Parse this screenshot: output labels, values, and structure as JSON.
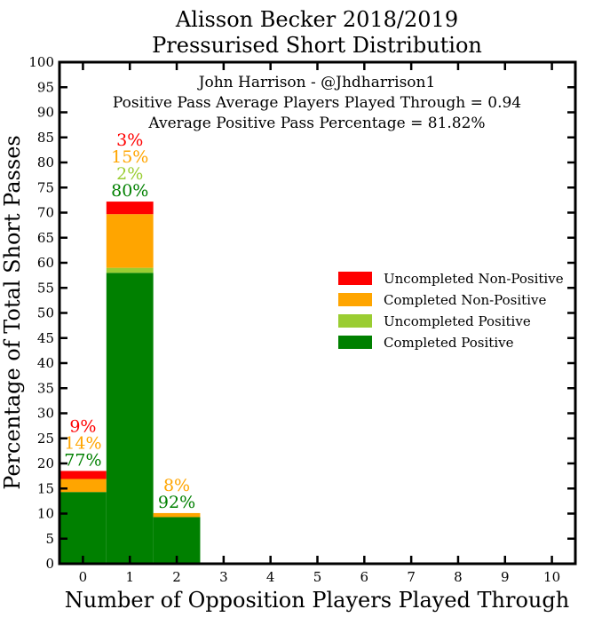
{
  "chart_data": {
    "type": "bar",
    "stacked": true,
    "title": "Alisson Becker 2018/2019",
    "subtitle": "Pressurised Short Distribution",
    "xlabel": "Number of Opposition Players Played Through",
    "ylabel": "Percentage of Total Short Passes",
    "annotations": [
      "John Harrison - @Jhdharrison1",
      "Positive Pass Average Players Played Through = 0.94",
      "Average Positive Pass Percentage = 81.82%"
    ],
    "categories": [
      0,
      1,
      2,
      3,
      4,
      5,
      6,
      7,
      8,
      9,
      10
    ],
    "xlim": [
      -0.5,
      10.5
    ],
    "ylim": [
      0,
      100
    ],
    "x_ticks": [
      "0",
      "1",
      "2",
      "3",
      "4",
      "5",
      "6",
      "7",
      "8",
      "9",
      "10"
    ],
    "y_ticks": [
      "0",
      "5",
      "10",
      "15",
      "20",
      "25",
      "30",
      "35",
      "40",
      "45",
      "50",
      "55",
      "60",
      "65",
      "70",
      "75",
      "80",
      "85",
      "90",
      "95",
      "100"
    ],
    "grid": false,
    "legend_position": "center-right",
    "series": [
      {
        "name": "Completed Positive",
        "color": "#008000",
        "values": [
          14.3,
          58.0,
          9.3,
          0,
          0,
          0,
          0,
          0,
          0,
          0,
          0
        ]
      },
      {
        "name": "Uncompleted Positive",
        "color": "#9ACD32",
        "values": [
          0,
          1.0,
          0,
          0,
          0,
          0,
          0,
          0,
          0,
          0,
          0
        ]
      },
      {
        "name": "Completed Non-Positive",
        "color": "#FFA500",
        "values": [
          2.6,
          10.7,
          0.8,
          0,
          0,
          0,
          0,
          0,
          0,
          0,
          0
        ]
      },
      {
        "name": "Uncompleted Non-Positive",
        "color": "#FF0000",
        "values": [
          1.6,
          2.5,
          0,
          0,
          0,
          0,
          0,
          0,
          0,
          0,
          0
        ]
      }
    ],
    "legend_order": [
      "Uncompleted Non-Positive",
      "Completed Non-Positive",
      "Uncompleted Positive",
      "Completed Positive"
    ],
    "bar_labels": [
      {
        "x": 0,
        "lines": [
          {
            "text": "9%",
            "color": "#FF0000"
          },
          {
            "text": "14%",
            "color": "#FFA500"
          },
          {
            "text": "77%",
            "color": "#008000"
          }
        ]
      },
      {
        "x": 1,
        "lines": [
          {
            "text": "3%",
            "color": "#FF0000"
          },
          {
            "text": "15%",
            "color": "#FFA500"
          },
          {
            "text": "2%",
            "color": "#9ACD32"
          },
          {
            "text": "80%",
            "color": "#008000"
          }
        ]
      },
      {
        "x": 2,
        "lines": [
          {
            "text": "8%",
            "color": "#FFA500"
          },
          {
            "text": "92%",
            "color": "#008000"
          }
        ]
      }
    ]
  }
}
